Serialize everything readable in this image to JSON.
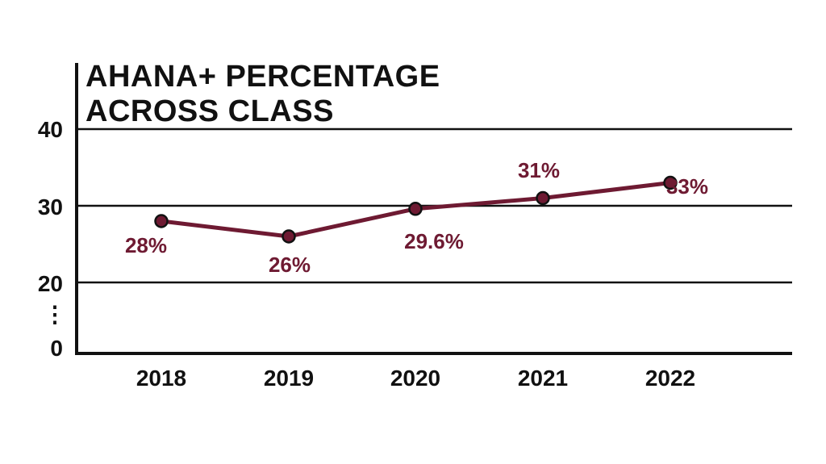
{
  "chart_data": {
    "type": "line",
    "title_lines": [
      "AHANA+ PERCENTAGE",
      "ACROSS CLASS"
    ],
    "categories": [
      "2018",
      "2019",
      "2020",
      "2021",
      "2022"
    ],
    "series": [
      {
        "values": [
          28,
          26,
          29.6,
          31,
          33
        ]
      }
    ],
    "data_labels": [
      "28%",
      "26%",
      "29.6%",
      "31%",
      "33%"
    ],
    "y_ticks": [
      "40",
      "30",
      "20",
      "0"
    ],
    "y_axis_break": "⋮",
    "ylim": [
      0,
      40
    ],
    "grid": true,
    "colors": {
      "line": "#6e1a32",
      "text": "#111111",
      "axis": "#111111"
    }
  }
}
